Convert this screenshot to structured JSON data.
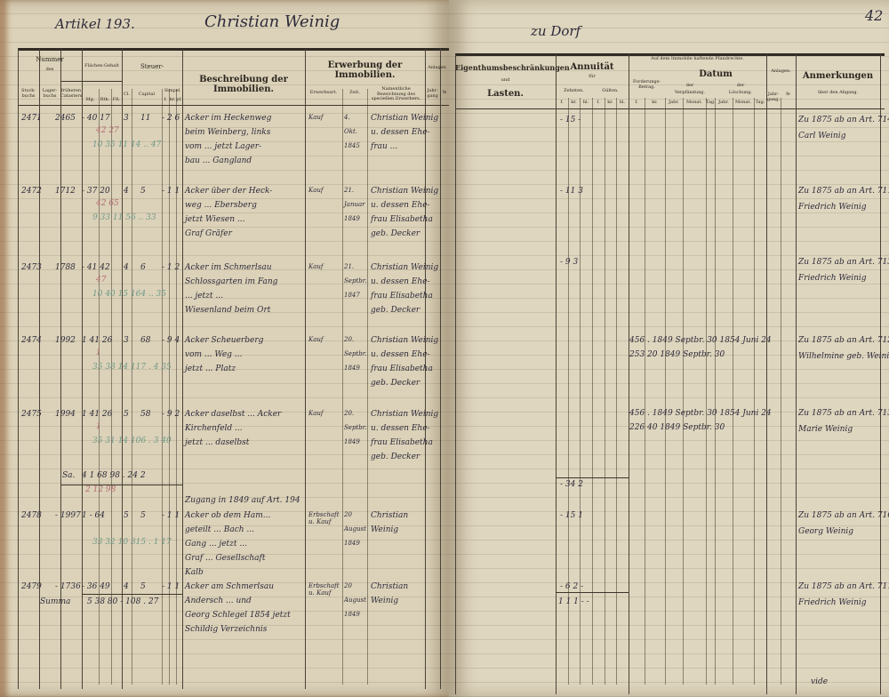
{
  "left_page": {
    "artikel": "Artikel 193.",
    "owner": "Christian Weinig",
    "headers": {
      "nummer": "Nummer",
      "des": "des",
      "stockbuch": "Stock-buchs",
      "lagerbuch": "Lager-buchs",
      "frueher": "früheren Catasters",
      "flaechen": "Flächen-Gehalt",
      "mg": "Mg.",
      "rth": "Rth.",
      "fs": "Fß.",
      "steuer": "Steuer-",
      "cl": "Cl.",
      "capital": "Capital",
      "simpel": "Simpel",
      "f": "f.",
      "kr": "kr.",
      "pf": "pf.",
      "beschreibung": "Beschreibung der Immobilien.",
      "erwerbung": "Erwerbung der Immobilien.",
      "erwerbsart": "Erwerbsart.",
      "zeit": "Zeit.",
      "namentliche": "Namentliche Bezeichnung des speciellen Erwerbers.",
      "anlagen": "Anlagen",
      "jahrgang": "Jahr-gang",
      "nr": "№"
    },
    "rows": [
      {
        "stock": "2471",
        "lager": "2465",
        "flaeche": "- 40 17",
        "cl": "3",
        "capital": "11",
        "simpel": "- 2 6",
        "red": "42 27",
        "green": "10 35 11 14 .. 47",
        "desc": [
          "Acker im Heckenweg",
          "beim Weinberg, links",
          "vom ... jetzt Lager-",
          "bau ... Gangland"
        ],
        "art": "Kauf",
        "zeit": [
          "4.",
          "Okt.",
          "1845"
        ],
        "name": [
          "Christian Weinig",
          "u. dessen Ehe-",
          "frau ..."
        ]
      },
      {
        "stock": "2472",
        "lager": "1712",
        "flaeche": "- 37 20",
        "cl": "4",
        "capital": "5",
        "simpel": "- 1 1",
        "red": "42 65",
        "green": "9 33 11 56 .. 33",
        "desc": [
          "Acker über der Heck-",
          "weg ... Ebersberg",
          "jetzt Wiesen ...",
          "Graf Gräfer"
        ],
        "art": "Kauf",
        "zeit": [
          "21.",
          "Januar",
          "1849"
        ],
        "name": [
          "Christian Weinig",
          "u. dessen Ehe-",
          "frau Elisabetha",
          "geb. Decker"
        ]
      },
      {
        "stock": "2473",
        "lager": "1788",
        "flaeche": "- 41 42",
        "cl": "4",
        "capital": "6",
        "simpel": "- 1 2",
        "red": "47",
        "green": "10 40 15 164 .. 35",
        "desc": [
          "Acker im Schmerlsau",
          "Schlossgarten im Fang",
          "... jetzt ...",
          "Wiesenland beim Ort"
        ],
        "art": "Kauf",
        "zeit": [
          "21.",
          "Septbr.",
          "1847"
        ],
        "name": [
          "Christian Weinig",
          "u. dessen Ehe-",
          "frau Elisabetha",
          "geb. Decker"
        ]
      },
      {
        "stock": "2474",
        "lager": "1992",
        "flaeche": "1 41 26",
        "cl": "3",
        "capital": "68",
        "simpel": "- 9 4",
        "red": "1",
        "green": "35 38 14 117 . 4 35",
        "desc": [
          "Acker Scheuerberg",
          "vom ... Weg ...",
          "jetzt ... Platz"
        ],
        "art": "Kauf",
        "zeit": [
          "20.",
          "Septbr.",
          "1849"
        ],
        "name": [
          "Christian Weinig",
          "u. dessen Ehe-",
          "frau Elisabetha",
          "geb. Decker"
        ]
      },
      {
        "stock": "2475",
        "lager": "1994",
        "flaeche": "1 41 26",
        "cl": "5",
        "capital": "58",
        "simpel": "- 9 2",
        "red": "1",
        "green": "35 31 14 106 . 3 40",
        "desc": [
          "Acker daselbst ... Acker",
          "Kirchenfeld ...",
          "jetzt ... daselbst"
        ],
        "art": "Kauf",
        "zeit": [
          "20.",
          "Septbr.",
          "1849"
        ],
        "name": [
          "Christian Weinig",
          "u. dessen Ehe-",
          "frau Elisabetha",
          "geb. Decker"
        ]
      }
    ],
    "subtotal": {
      "label": "Sa.",
      "values": "4 1 68 98 . 24 2",
      "red": "2 12 98"
    },
    "transfer_note": "Zugang in 1849 auf Art. 194",
    "rows2": [
      {
        "stock": "2478",
        "lager": "- 1997",
        "flaeche": "1 - 64",
        "cl": "5",
        "capital": "5",
        "simpel": "- 1 1",
        "green": "33 32 10 315 . 1 17",
        "desc": [
          "Acker ob dem Ham...",
          "geteilt ... Bach ...",
          "Gang ... jetzt ...",
          "Graf ... Gesellschaft",
          "Kalb"
        ],
        "art": "Erbschaft u. Kauf",
        "zeit": [
          "20",
          "August",
          "1849"
        ],
        "name": [
          "Christian",
          "Weinig"
        ]
      },
      {
        "stock": "2479",
        "lager": "- 1736",
        "flaeche": "- 36 49",
        "cl": "4",
        "capital": "5",
        "simpel": "- 1 1",
        "desc": [
          "Acker am Schmerlsau",
          "Andersch ... und",
          "Georg Schlegel 1854 jetzt",
          "Schildig Verzeichnis"
        ],
        "art": "Erbschaft u. Kauf",
        "zeit": [
          "20",
          "August",
          "1849"
        ],
        "name": [
          "Christian",
          "Weinig"
        ]
      }
    ],
    "summa": {
      "label": "Summa",
      "values": "5 38 80 - 108 . 27"
    }
  },
  "right_page": {
    "place": "zu Dorf",
    "page_number": "42",
    "headers": {
      "eigenthum": "Eigenthumsbeschränkungen",
      "und": "und",
      "lasten": "Lasten.",
      "annuitaet": "Annuität",
      "fuer": "für",
      "zehnten": "Zehnten.",
      "gueltten": "Gülten.",
      "f": "f.",
      "kr": "kr.",
      "hl": "hl.",
      "pfandrechte": "Auf dem Immobile haftende Pfandrechte.",
      "forderung": "Forderungs-Betrag.",
      "datum": "Datum",
      "der": "der",
      "verpfaendung": "Verpfändung.",
      "loeschung": "Löschung.",
      "jahr": "Jahr.",
      "monat": "Monat.",
      "tag": "Tag.",
      "anlagen": "Anlagen.",
      "jahrgang": "Jahr-gang.",
      "nr": "№",
      "anmerkungen": "Anmerkungen",
      "abgang": "über den Abgang."
    },
    "rows": [
      {
        "annuitaet": "- 15 -",
        "pfand": [],
        "remark": [
          "Zu 1875 ab an Art. 714",
          "Carl Weinig"
        ]
      },
      {
        "annuitaet": "- 11 3",
        "pfand": [],
        "remark": [
          "Zu 1875 ab an Art. 711",
          "Friedrich Weinig"
        ]
      },
      {
        "annuitaet": "- 9 3",
        "pfand": [],
        "remark": [
          "Zu 1875 ab an Art. 713",
          "Friedrich Weinig"
        ]
      },
      {
        "annuitaet": "",
        "pfand": [
          "456 . 1849 Septbr. 30 1854 Juni 24",
          "253 20 1849 Septbr. 30"
        ],
        "remark": [
          "Zu 1875 ab an Art. 712",
          "Wilhelmine geb. Weinig"
        ]
      },
      {
        "annuitaet": "",
        "pfand": [
          "456 . 1849 Septbr. 30 1854 Juni 24",
          "226 40 1849 Septbr. 30"
        ],
        "remark": [
          "Zu 1875 ab an Art. 713",
          "Marie Weinig"
        ]
      }
    ],
    "subtotal": "- 34 2",
    "rows2": [
      {
        "annuitaet": "- 15 1",
        "remark": [
          "Zu 1875 ab an Art. 716",
          "Georg Weinig"
        ]
      },
      {
        "annuitaet": "- 6 2 -",
        "remark": [
          "Zu 1875 ab an Art. 711",
          "Friedrich Weinig"
        ]
      }
    ],
    "summa": "1 1 1 - -",
    "footer_note": "vide"
  }
}
